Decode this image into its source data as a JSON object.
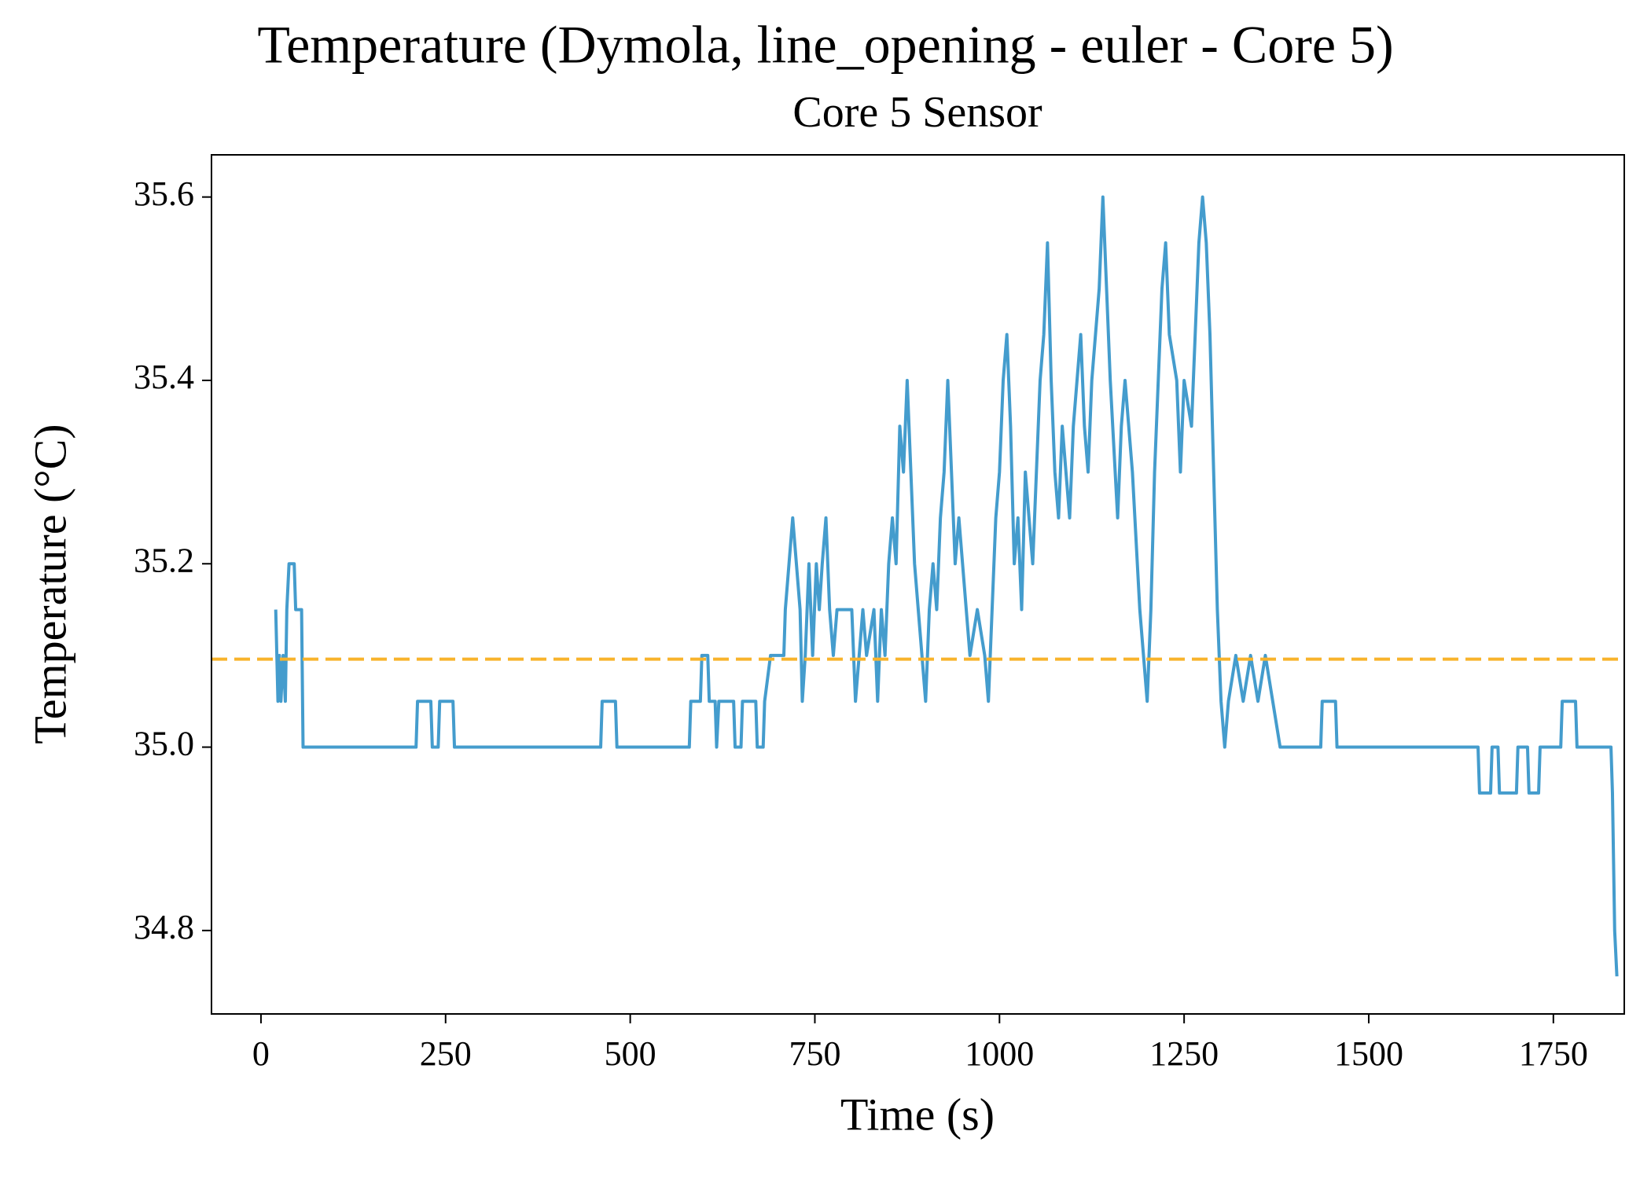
{
  "chart_data": {
    "type": "line",
    "title": "Temperature (Dymola, line_opening - euler - Core 5)",
    "subtitle": "Core 5 Sensor",
    "xlabel": "Time (s)",
    "ylabel": "Temperature (°C)",
    "x": [
      20,
      23,
      25,
      27,
      30,
      33,
      35,
      38,
      45,
      47,
      55,
      57,
      210,
      212,
      230,
      232,
      240,
      242,
      260,
      262,
      460,
      462,
      480,
      482,
      580,
      582,
      595,
      597,
      605,
      607,
      615,
      617,
      620,
      640,
      642,
      650,
      652,
      670,
      672,
      680,
      682,
      690,
      708,
      710,
      715,
      720,
      725,
      730,
      733,
      737,
      742,
      747,
      752,
      756,
      760,
      765,
      770,
      775,
      780,
      800,
      805,
      810,
      815,
      820,
      830,
      835,
      840,
      845,
      850,
      855,
      860,
      865,
      870,
      875,
      880,
      885,
      890,
      900,
      905,
      910,
      915,
      920,
      925,
      930,
      935,
      940,
      945,
      955,
      960,
      970,
      980,
      985,
      990,
      995,
      1000,
      1005,
      1010,
      1015,
      1020,
      1025,
      1030,
      1035,
      1040,
      1045,
      1050,
      1055,
      1060,
      1065,
      1070,
      1075,
      1080,
      1085,
      1090,
      1095,
      1100,
      1105,
      1110,
      1115,
      1120,
      1125,
      1130,
      1135,
      1140,
      1145,
      1150,
      1160,
      1165,
      1170,
      1180,
      1190,
      1195,
      1200,
      1205,
      1210,
      1215,
      1220,
      1225,
      1230,
      1240,
      1245,
      1250,
      1260,
      1265,
      1270,
      1275,
      1280,
      1285,
      1290,
      1295,
      1300,
      1305,
      1310,
      1320,
      1330,
      1340,
      1350,
      1360,
      1370,
      1380,
      1435,
      1437,
      1455,
      1457,
      1648,
      1650,
      1665,
      1667,
      1675,
      1677,
      1700,
      1702,
      1715,
      1717,
      1730,
      1732,
      1760,
      1762,
      1780,
      1782,
      1828,
      1830,
      1833,
      1836
    ],
    "series": [
      {
        "name": "Core 5 Sensor",
        "color": "#449ccd",
        "values": [
          35.15,
          35.05,
          35.1,
          35.05,
          35.1,
          35.05,
          35.15,
          35.2,
          35.2,
          35.15,
          35.15,
          35.0,
          35.0,
          35.05,
          35.05,
          35.0,
          35.0,
          35.05,
          35.05,
          35.0,
          35.0,
          35.05,
          35.05,
          35.0,
          35.0,
          35.05,
          35.05,
          35.1,
          35.1,
          35.05,
          35.05,
          35.0,
          35.05,
          35.05,
          35.0,
          35.0,
          35.05,
          35.05,
          35.0,
          35.0,
          35.05,
          35.1,
          35.1,
          35.15,
          35.2,
          35.25,
          35.2,
          35.15,
          35.05,
          35.1,
          35.2,
          35.1,
          35.2,
          35.15,
          35.2,
          35.25,
          35.15,
          35.1,
          35.15,
          35.15,
          35.05,
          35.1,
          35.15,
          35.1,
          35.15,
          35.05,
          35.15,
          35.1,
          35.2,
          35.25,
          35.2,
          35.35,
          35.3,
          35.4,
          35.3,
          35.2,
          35.15,
          35.05,
          35.15,
          35.2,
          35.15,
          35.25,
          35.3,
          35.4,
          35.3,
          35.2,
          35.25,
          35.15,
          35.1,
          35.15,
          35.1,
          35.05,
          35.15,
          35.25,
          35.3,
          35.4,
          35.45,
          35.35,
          35.2,
          35.25,
          35.15,
          35.3,
          35.25,
          35.2,
          35.3,
          35.4,
          35.45,
          35.55,
          35.4,
          35.3,
          35.25,
          35.35,
          35.3,
          35.25,
          35.35,
          35.4,
          35.45,
          35.35,
          35.3,
          35.4,
          35.45,
          35.5,
          35.6,
          35.5,
          35.4,
          35.25,
          35.35,
          35.4,
          35.3,
          35.15,
          35.1,
          35.05,
          35.15,
          35.3,
          35.4,
          35.5,
          35.55,
          35.45,
          35.4,
          35.3,
          35.4,
          35.35,
          35.45,
          35.55,
          35.6,
          35.55,
          35.45,
          35.3,
          35.15,
          35.05,
          35.0,
          35.05,
          35.1,
          35.05,
          35.1,
          35.05,
          35.1,
          35.05,
          35.0,
          35.0,
          35.05,
          35.05,
          35.0,
          35.0,
          34.95,
          34.95,
          35.0,
          35.0,
          34.95,
          34.95,
          35.0,
          35.0,
          34.95,
          34.95,
          35.0,
          35.0,
          35.05,
          35.05,
          35.0,
          35.0,
          34.95,
          34.8,
          34.75
        ]
      }
    ],
    "threshold": 35.096,
    "threshold_color": "#f8b32b",
    "xlim": [
      -67,
      1846
    ],
    "xticks": [
      0,
      250,
      500,
      750,
      1000,
      1250,
      1500,
      1750
    ],
    "ylim": [
      34.709,
      35.646
    ],
    "yticks": [
      34.8,
      {
        "value": 35,
        "label": "35.0"
      },
      35.2,
      35.4,
      35.6
    ],
    "grid": false
  }
}
